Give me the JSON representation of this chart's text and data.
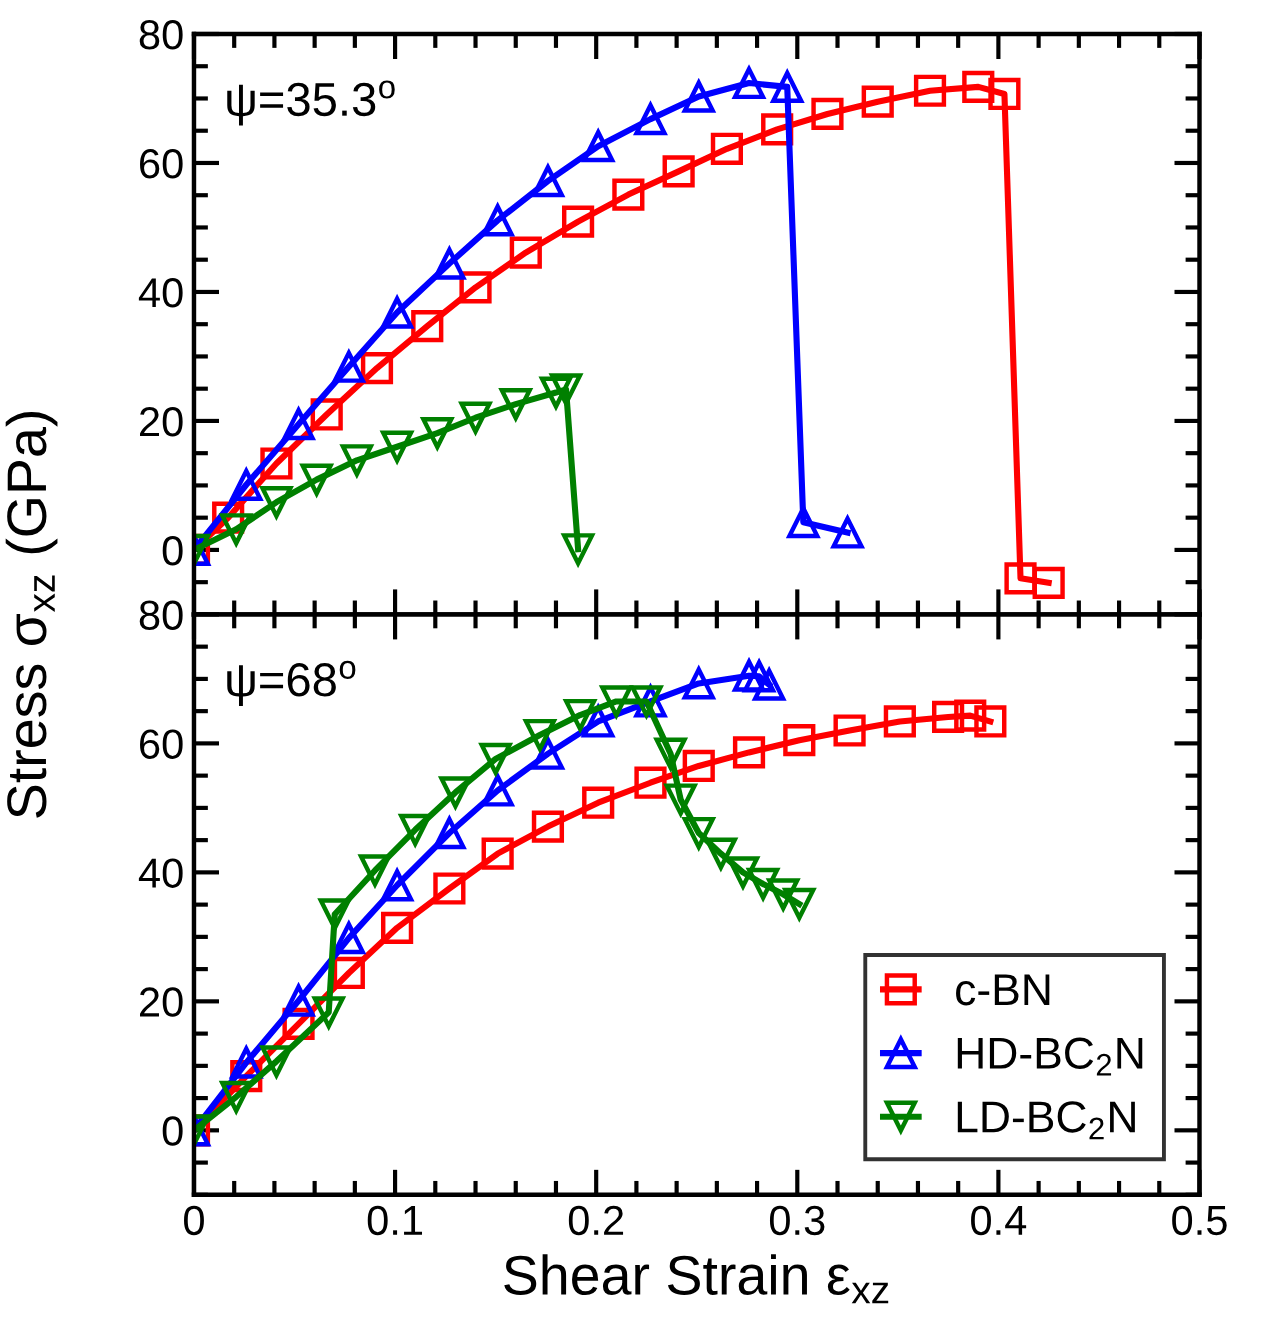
{
  "chart_data": [
    {
      "type": "line",
      "ylabel": "Stress σ$_{xz}$ (GPa)",
      "annotations": [
        "ψ=35.3$^{o}$"
      ],
      "xlim": [
        0,
        0.5
      ],
      "xticks": [
        0,
        0.1,
        0.2,
        0.3,
        0.4,
        0.5
      ],
      "ylim": [
        -10,
        80
      ],
      "yticks": [
        0,
        20,
        40,
        60,
        80
      ],
      "tick_labels": "y",
      "grid": false,
      "legend": false,
      "line_style": "solid",
      "series": [
        {
          "color": "#ff0000",
          "marker": "square",
          "x": [
            0,
            0.017,
            0.041,
            0.066,
            0.091,
            0.116,
            0.14,
            0.165,
            0.191,
            0.216,
            0.241,
            0.265,
            0.29,
            0.315,
            0.34,
            0.366,
            0.39,
            0.403,
            0.411,
            0.425
          ],
          "values": [
            0,
            5.0,
            13.4,
            21.0,
            28.2,
            34.7,
            40.7,
            46.1,
            50.9,
            55.1,
            58.7,
            62.2,
            65.2,
            67.6,
            69.5,
            71.2,
            71.8,
            70.7,
            -4.4,
            -5.1
          ]
        },
        {
          "color": "#0000ff",
          "marker": "triangle",
          "x": [
            0,
            0.026,
            0.052,
            0.077,
            0.101,
            0.127,
            0.151,
            0.176,
            0.201,
            0.227,
            0.251,
            0.276,
            0.295,
            0.303,
            0.325
          ],
          "values": [
            0,
            10.1,
            19.5,
            28.4,
            36.8,
            44.4,
            51.1,
            57.2,
            62.6,
            66.8,
            70.3,
            72.4,
            71.8,
            4.3,
            2.7
          ]
        },
        {
          "color": "#008000",
          "marker": "triangle_down",
          "x": [
            0,
            0.021,
            0.041,
            0.061,
            0.081,
            0.101,
            0.121,
            0.14,
            0.16,
            0.18,
            0.185,
            0.191
          ],
          "values": [
            0,
            3.2,
            7.4,
            10.9,
            13.9,
            16.0,
            18.1,
            20.5,
            22.6,
            24.4,
            24.9,
            0.1
          ]
        }
      ]
    },
    {
      "type": "line",
      "xlabel": "Shear Strain ε$_{xz}$",
      "annotations": [
        "ψ=68$^{o}$"
      ],
      "xlim": [
        0,
        0.5
      ],
      "xticks": [
        0,
        0.1,
        0.2,
        0.3,
        0.4,
        0.5
      ],
      "ylim": [
        -10,
        80
      ],
      "yticks": [
        0,
        20,
        40,
        60,
        80
      ],
      "grid": false,
      "legend": "bottom right",
      "line_style": "solid",
      "series": [
        {
          "name": "c-BN",
          "color": "#ff0000",
          "marker": "square",
          "x": [
            0,
            0.026,
            0.052,
            0.077,
            0.101,
            0.127,
            0.151,
            0.176,
            0.201,
            0.227,
            0.251,
            0.276,
            0.301,
            0.326,
            0.351,
            0.375,
            0.386,
            0.396
          ],
          "values": [
            0,
            8.4,
            16.5,
            24.4,
            31.4,
            37.5,
            42.9,
            47.1,
            50.8,
            53.9,
            56.5,
            58.6,
            60.5,
            62.0,
            63.4,
            64.1,
            64.3,
            63.4
          ]
        },
        {
          "name": "HD-BC$_{2}$N",
          "color": "#0000ff",
          "marker": "triangle",
          "x": [
            0,
            0.026,
            0.052,
            0.077,
            0.101,
            0.127,
            0.151,
            0.176,
            0.201,
            0.227,
            0.251,
            0.276,
            0.281,
            0.286
          ],
          "values": [
            0,
            10.5,
            20.1,
            29.8,
            38.0,
            46.1,
            52.7,
            58.4,
            63.4,
            66.5,
            69.3,
            70.5,
            70.4,
            69.1
          ]
        },
        {
          "name": "LD-BC$_{2}$N",
          "color": "#008000",
          "marker": "triangle_down",
          "x": [
            0,
            0.021,
            0.041,
            0.067,
            0.07,
            0.09,
            0.11,
            0.13,
            0.15,
            0.172,
            0.192,
            0.21,
            0.225,
            0.237,
            0.242,
            0.251,
            0.262,
            0.273,
            0.283,
            0.293,
            0.301
          ],
          "values": [
            0,
            5.2,
            10.7,
            18.3,
            33.5,
            40.3,
            46.6,
            52.4,
            57.6,
            61.3,
            64.4,
            66.5,
            66.5,
            58.4,
            51.3,
            46.1,
            42.9,
            40.0,
            38.2,
            36.6,
            35.1
          ]
        }
      ]
    }
  ]
}
